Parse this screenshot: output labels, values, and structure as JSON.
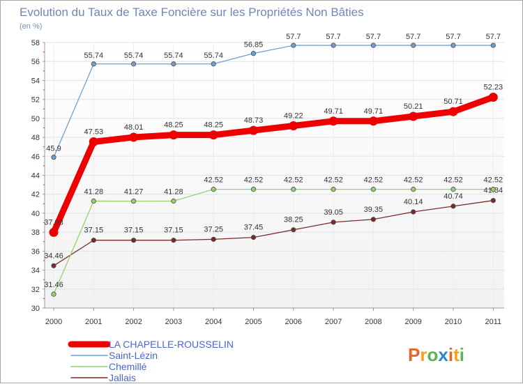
{
  "chart_data": {
    "type": "line",
    "title": "Evolution du Taux de Taxe Foncière sur les Propriétés Non Bâties",
    "unit_label": "(en %)",
    "xlabel": "",
    "ylabel": "",
    "categories": [
      "2000",
      "2001",
      "2002",
      "2003",
      "2004",
      "2005",
      "2006",
      "2007",
      "2008",
      "2009",
      "2010",
      "2011"
    ],
    "ylim": [
      30,
      58
    ],
    "yticks": [
      30,
      32,
      34,
      36,
      38,
      40,
      42,
      44,
      46,
      48,
      50,
      52,
      54,
      56,
      58
    ],
    "grid": true,
    "legend_position": "bottom-left",
    "series": [
      {
        "name": "LA CHAPELLE-ROUSSELIN",
        "color": "#ee0000",
        "values": [
          37.98,
          47.53,
          48.01,
          48.25,
          48.25,
          48.73,
          49.22,
          49.71,
          49.71,
          50.21,
          50.71,
          52.23
        ],
        "labels": [
          "37.98",
          "47.53",
          "48.01",
          "48.25",
          "48.25",
          "48.73",
          "49.22",
          "49.71",
          "49.71",
          "50.21",
          "50.71",
          "52.23"
        ]
      },
      {
        "name": "Saint-Lézin",
        "color": "#6f9fd2",
        "values": [
          45.9,
          55.74,
          55.74,
          55.74,
          55.74,
          56.85,
          57.7,
          57.7,
          57.7,
          57.7,
          57.7,
          57.7
        ],
        "labels": [
          "45.9",
          "55.74",
          "55.74",
          "55.74",
          "55.74",
          "56.85",
          "57.7",
          "57.7",
          "57.7",
          "57.7",
          "57.7",
          "57.7"
        ]
      },
      {
        "name": "Chemillé",
        "color": "#93d26a",
        "values": [
          31.46,
          41.28,
          41.27,
          41.28,
          42.52,
          42.52,
          42.52,
          42.52,
          42.52,
          42.52,
          42.52,
          42.52
        ],
        "labels": [
          "31.46",
          "41.28",
          "41.27",
          "41.28",
          "42.52",
          "42.52",
          "42.52",
          "42.52",
          "42.52",
          "42.52",
          "42.52",
          "42.52"
        ]
      },
      {
        "name": "Jallais",
        "color": "#7a2a2a",
        "values": [
          34.46,
          37.15,
          37.15,
          37.15,
          37.25,
          37.45,
          38.25,
          39.05,
          39.35,
          40.14,
          40.74,
          41.34
        ],
        "labels": [
          "34.46",
          "37.15",
          "37.15",
          "37.15",
          "37.25",
          "37.45",
          "38.25",
          "39.05",
          "39.35",
          "40.14",
          "40.74",
          "41.34"
        ]
      }
    ]
  },
  "logo": {
    "text": "Proxiti",
    "colors": [
      "#e8632b",
      "#f2a21b",
      "#5ab54a",
      "#2e86c8",
      "#e8632b",
      "#f2a21b",
      "#5ab54a"
    ]
  }
}
